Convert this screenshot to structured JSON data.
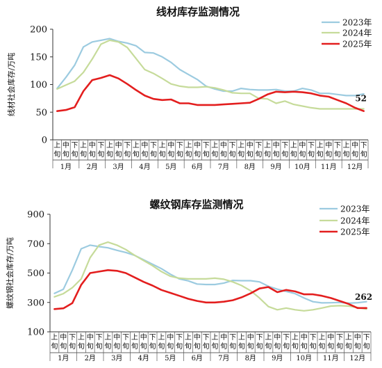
{
  "chart_data": [
    {
      "type": "line",
      "title": "线材库存监测情况",
      "ylabel": "线材社会库存/万吨",
      "ylim": [
        0,
        200
      ],
      "yticks": [
        0,
        50,
        100,
        150,
        200
      ],
      "legend_position": "top-right",
      "months": [
        "1月",
        "2月",
        "3月",
        "4月",
        "5月",
        "6月",
        "7月",
        "8月",
        "9月",
        "10月",
        "11月",
        "12月"
      ],
      "periods": [
        "上旬",
        "中旬",
        "下旬"
      ],
      "end_label": "52",
      "series": [
        {
          "name": "2023年",
          "color": "#9ccbe0",
          "values": [
            93,
            113,
            135,
            168,
            177,
            180,
            183,
            178,
            175,
            170,
            158,
            157,
            150,
            140,
            127,
            118,
            109,
            97,
            92,
            88,
            88,
            93,
            91,
            90,
            90,
            91,
            88,
            88,
            93,
            90,
            84,
            84,
            82,
            80,
            80,
            83
          ]
        },
        {
          "name": "2024年",
          "color": "#c6db9a",
          "values": [
            92,
            99,
            106,
            122,
            146,
            173,
            180,
            177,
            167,
            147,
            127,
            120,
            111,
            101,
            97,
            95,
            95,
            96,
            94,
            90,
            85,
            84,
            84,
            75,
            74,
            66,
            70,
            64,
            61,
            58,
            56,
            56,
            56,
            56,
            56,
            56
          ]
        },
        {
          "name": "2025年",
          "color": "#e31e1e",
          "values": [
            52,
            54,
            59,
            88,
            108,
            112,
            117,
            111,
            101,
            90,
            80,
            74,
            72,
            73,
            66,
            66,
            63,
            63,
            63,
            64,
            65,
            66,
            67,
            74,
            82,
            87,
            86,
            87,
            86,
            84,
            80,
            78,
            72,
            66,
            58,
            52
          ]
        }
      ]
    },
    {
      "type": "line",
      "title": "螺纹钢库存监测情况",
      "ylabel": "螺纹钢社会库存/万吨",
      "ylim": [
        100,
        900
      ],
      "yticks": [
        100,
        300,
        500,
        700,
        900
      ],
      "legend_position": "top-right",
      "months": [
        "1月",
        "2月",
        "3月",
        "4月",
        "5月",
        "6月",
        "7月",
        "8月",
        "9月",
        "10月",
        "11月",
        "12月"
      ],
      "periods": [
        "上旬",
        "中旬",
        "下旬"
      ],
      "end_label": "262",
      "series": [
        {
          "name": "2023年",
          "color": "#9ccbe0",
          "values": [
            362,
            390,
            520,
            665,
            690,
            680,
            672,
            655,
            640,
            620,
            590,
            560,
            530,
            492,
            460,
            447,
            425,
            422,
            422,
            432,
            450,
            448,
            448,
            440,
            410,
            390,
            375,
            360,
            330,
            305,
            297,
            298,
            300,
            295,
            298,
            305
          ]
        },
        {
          "name": "2024年",
          "color": "#c6db9a",
          "values": [
            338,
            360,
            400,
            460,
            605,
            690,
            710,
            690,
            660,
            620,
            585,
            550,
            510,
            478,
            465,
            460,
            460,
            460,
            465,
            458,
            440,
            415,
            380,
            330,
            272,
            250,
            262,
            250,
            243,
            250,
            262,
            275,
            278,
            275,
            265,
            255
          ]
        },
        {
          "name": "2025年",
          "color": "#e31e1e",
          "values": [
            255,
            260,
            295,
            420,
            500,
            510,
            520,
            515,
            500,
            470,
            440,
            415,
            385,
            365,
            345,
            325,
            310,
            300,
            300,
            305,
            315,
            335,
            362,
            395,
            405,
            370,
            385,
            375,
            355,
            355,
            345,
            330,
            310,
            290,
            262,
            262
          ]
        }
      ]
    }
  ]
}
